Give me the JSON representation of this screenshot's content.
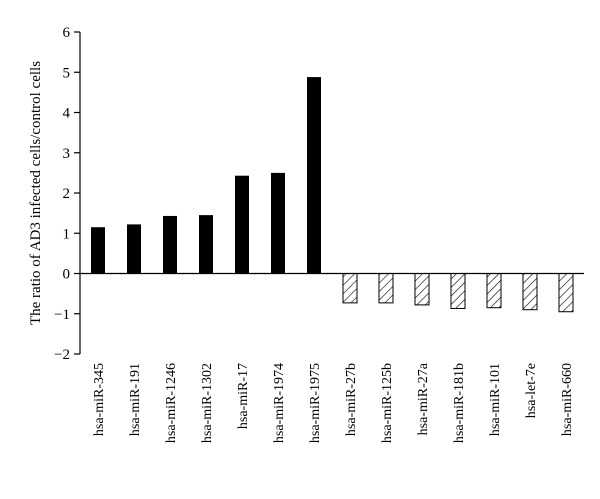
{
  "chart_data": {
    "type": "bar",
    "title": "",
    "xlabel": "",
    "ylabel": "The ratio of AD3 infected cells/control cells",
    "ylim": [
      -2,
      6
    ],
    "yticks": [
      -2,
      -1,
      0,
      1,
      2,
      3,
      4,
      5,
      6
    ],
    "ytick_labels": [
      "−2",
      "−1",
      "0",
      "1",
      "2",
      "3",
      "4",
      "5",
      "6"
    ],
    "grid": false,
    "categories": [
      "hsa-miR-345",
      "hsa-miR-191",
      "hsa-miR-1246",
      "hsa-miR-1302",
      "hsa-miR-17",
      "hsa-miR-1974",
      "hsa-miR-1975",
      "hsa-miR-27b",
      "hsa-miR-125b",
      "hsa-miR-27a",
      "hsa-miR-181b",
      "hsa-miR-101",
      "hsa-let-7e",
      "hsa-miR-660"
    ],
    "values": [
      1.15,
      1.22,
      1.43,
      1.45,
      2.43,
      2.5,
      4.88,
      -0.73,
      -0.73,
      -0.78,
      -0.87,
      -0.85,
      -0.9,
      -0.95
    ],
    "colors": {
      "positive": "#000000",
      "negative_fill": "hatched",
      "stroke": "#000000"
    }
  }
}
